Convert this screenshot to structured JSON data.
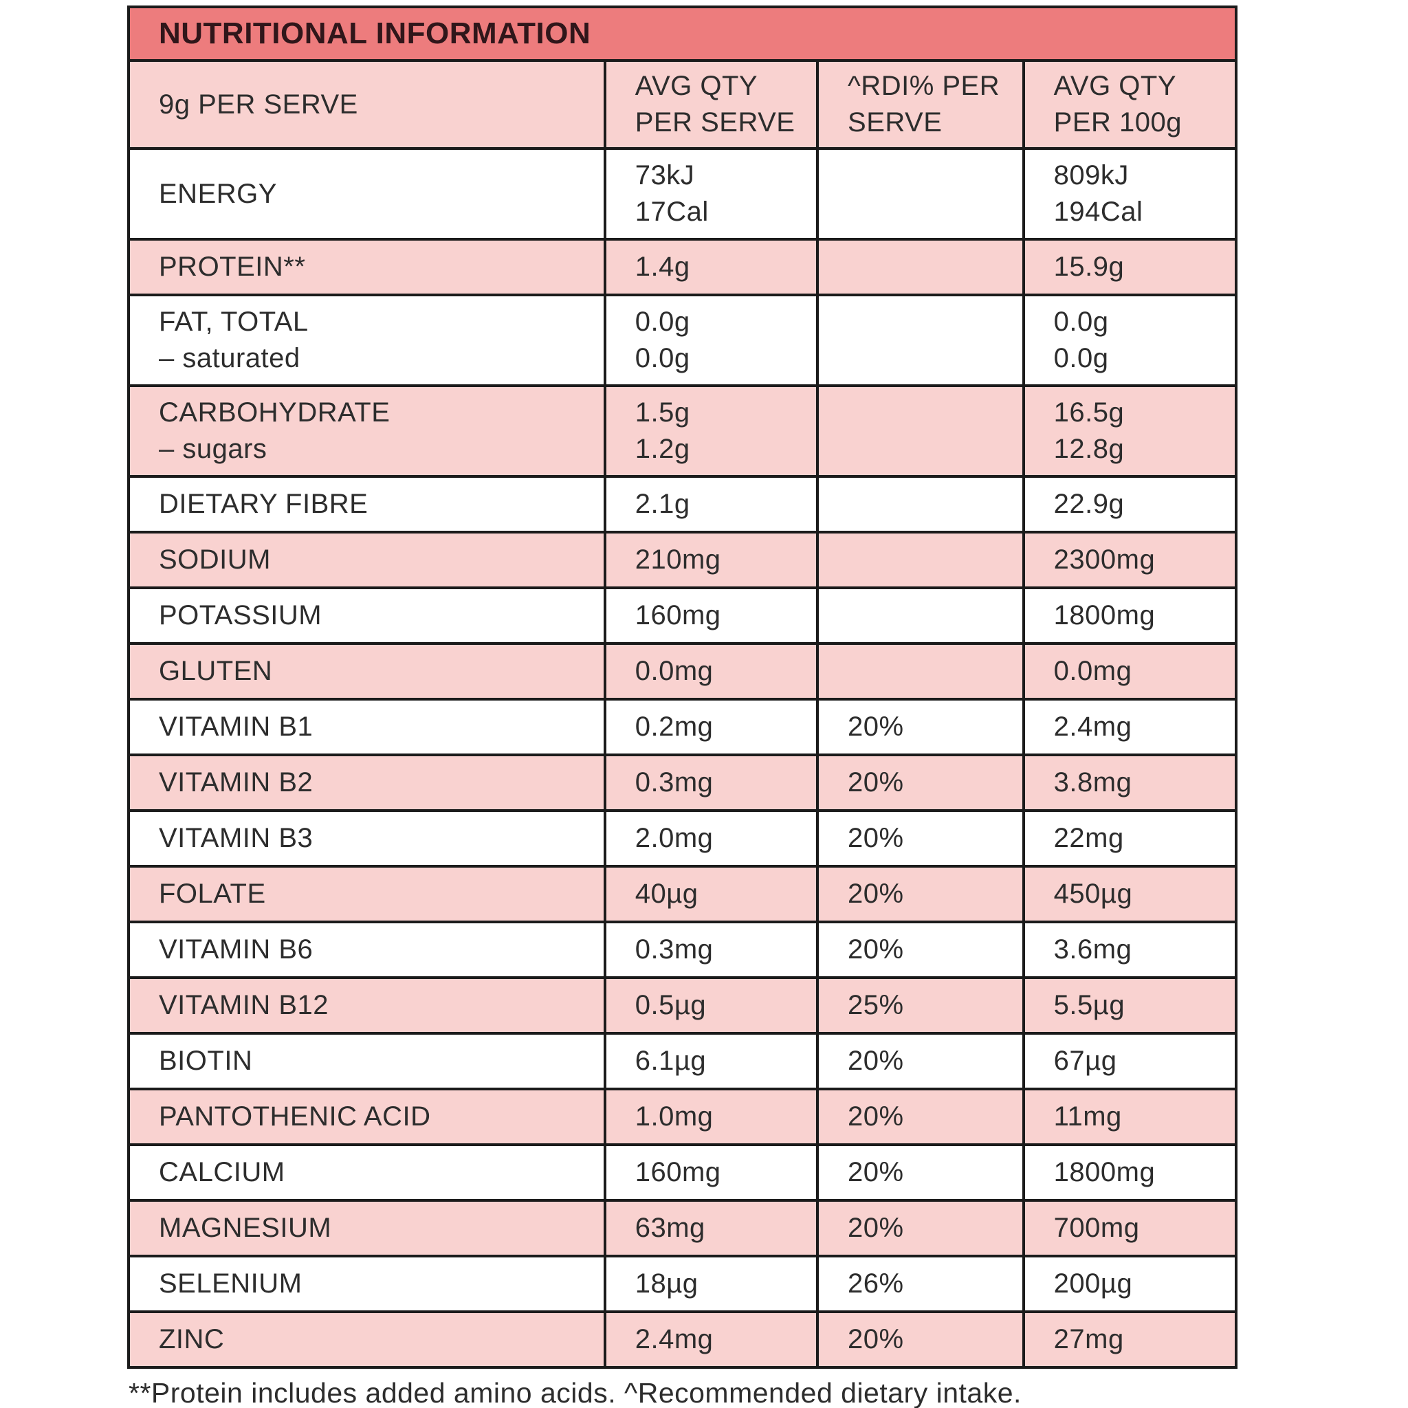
{
  "title": "NUTRITIONAL INFORMATION",
  "columns": [
    {
      "lines": [
        "9g PER SERVE"
      ]
    },
    {
      "lines": [
        "AVG QTY",
        "PER SERVE"
      ]
    },
    {
      "lines": [
        "^RDI% PER",
        "SERVE"
      ]
    },
    {
      "lines": [
        "AVG QTY",
        "PER 100g"
      ]
    }
  ],
  "rows": [
    {
      "label": [
        "ENERGY"
      ],
      "per_serve": [
        "73kJ",
        "17Cal"
      ],
      "rdi": "",
      "per_100g": [
        "809kJ",
        "194Cal"
      ],
      "shade": "white",
      "tall": true
    },
    {
      "label": [
        "PROTEIN**"
      ],
      "per_serve": [
        "1.4g"
      ],
      "rdi": "",
      "per_100g": [
        "15.9g"
      ],
      "shade": "pink",
      "tall": false
    },
    {
      "label": [
        "FAT, TOTAL",
        "– saturated"
      ],
      "per_serve": [
        "0.0g",
        "0.0g"
      ],
      "rdi": "",
      "per_100g": [
        "0.0g",
        "0.0g"
      ],
      "shade": "white",
      "tall": true
    },
    {
      "label": [
        "CARBOHYDRATE",
        "– sugars"
      ],
      "per_serve": [
        "1.5g",
        "1.2g"
      ],
      "rdi": "",
      "per_100g": [
        "16.5g",
        "12.8g"
      ],
      "shade": "pink",
      "tall": true
    },
    {
      "label": [
        "DIETARY FIBRE"
      ],
      "per_serve": [
        "2.1g"
      ],
      "rdi": "",
      "per_100g": [
        "22.9g"
      ],
      "shade": "white",
      "tall": false
    },
    {
      "label": [
        "SODIUM"
      ],
      "per_serve": [
        "210mg"
      ],
      "rdi": "",
      "per_100g": [
        "2300mg"
      ],
      "shade": "pink",
      "tall": false
    },
    {
      "label": [
        "POTASSIUM"
      ],
      "per_serve": [
        "160mg"
      ],
      "rdi": "",
      "per_100g": [
        "1800mg"
      ],
      "shade": "white",
      "tall": false
    },
    {
      "label": [
        "GLUTEN"
      ],
      "per_serve": [
        "0.0mg"
      ],
      "rdi": "",
      "per_100g": [
        "0.0mg"
      ],
      "shade": "pink",
      "tall": false
    },
    {
      "label": [
        "VITAMIN B1"
      ],
      "per_serve": [
        "0.2mg"
      ],
      "rdi": "20%",
      "per_100g": [
        "2.4mg"
      ],
      "shade": "white",
      "tall": false
    },
    {
      "label": [
        "VITAMIN B2"
      ],
      "per_serve": [
        "0.3mg"
      ],
      "rdi": "20%",
      "per_100g": [
        "3.8mg"
      ],
      "shade": "pink",
      "tall": false
    },
    {
      "label": [
        "VITAMIN B3"
      ],
      "per_serve": [
        "2.0mg"
      ],
      "rdi": "20%",
      "per_100g": [
        "22mg"
      ],
      "shade": "white",
      "tall": false
    },
    {
      "label": [
        "FOLATE"
      ],
      "per_serve": [
        "40µg"
      ],
      "rdi": "20%",
      "per_100g": [
        "450µg"
      ],
      "shade": "pink",
      "tall": false
    },
    {
      "label": [
        "VITAMIN B6"
      ],
      "per_serve": [
        "0.3mg"
      ],
      "rdi": "20%",
      "per_100g": [
        "3.6mg"
      ],
      "shade": "white",
      "tall": false
    },
    {
      "label": [
        "VITAMIN B12"
      ],
      "per_serve": [
        "0.5µg"
      ],
      "rdi": "25%",
      "per_100g": [
        "5.5µg"
      ],
      "shade": "pink",
      "tall": false
    },
    {
      "label": [
        "BIOTIN"
      ],
      "per_serve": [
        "6.1µg"
      ],
      "rdi": "20%",
      "per_100g": [
        "67µg"
      ],
      "shade": "white",
      "tall": false
    },
    {
      "label": [
        "PANTOTHENIC ACID"
      ],
      "per_serve": [
        "1.0mg"
      ],
      "rdi": "20%",
      "per_100g": [
        "11mg"
      ],
      "shade": "pink",
      "tall": false
    },
    {
      "label": [
        "CALCIUM"
      ],
      "per_serve": [
        "160mg"
      ],
      "rdi": "20%",
      "per_100g": [
        "1800mg"
      ],
      "shade": "white",
      "tall": false
    },
    {
      "label": [
        "MAGNESIUM"
      ],
      "per_serve": [
        "63mg"
      ],
      "rdi": "20%",
      "per_100g": [
        "700mg"
      ],
      "shade": "pink",
      "tall": false
    },
    {
      "label": [
        "SELENIUM"
      ],
      "per_serve": [
        "18µg"
      ],
      "rdi": "26%",
      "per_100g": [
        "200µg"
      ],
      "shade": "white",
      "tall": false
    },
    {
      "label": [
        "ZINC"
      ],
      "per_serve": [
        "2.4mg"
      ],
      "rdi": "20%",
      "per_100g": [
        "27mg"
      ],
      "shade": "pink",
      "tall": false
    }
  ],
  "footnote": "**Protein includes added amino acids. ^Recommended dietary intake.",
  "colors": {
    "banner": "#ed7c7d",
    "pink_row": "#f9d2d0",
    "white_row": "#ffffff",
    "border": "#1b1b1b",
    "text": "#2d2d2d",
    "title_text": "#30161a"
  }
}
